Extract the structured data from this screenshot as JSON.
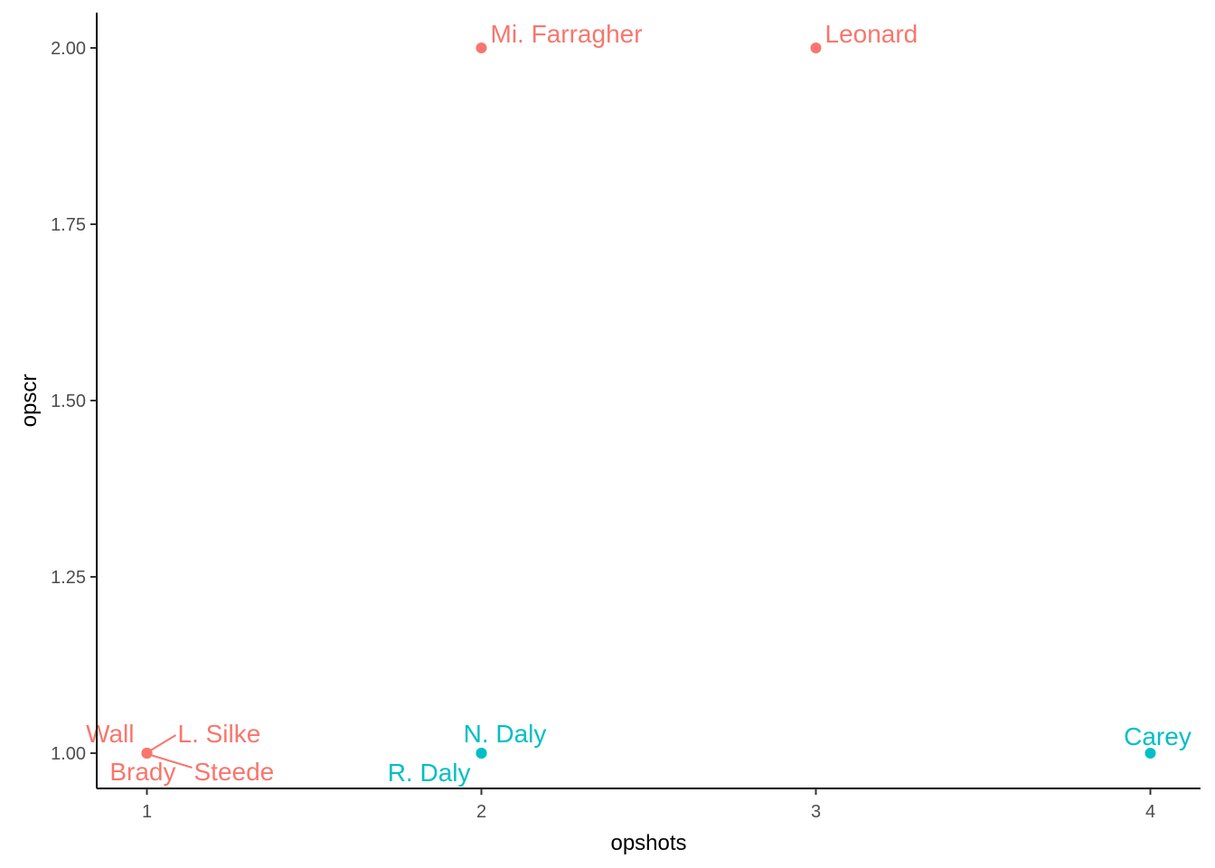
{
  "chart_data": {
    "type": "scatter",
    "xlabel": "opshots",
    "ylabel": "opscr",
    "xlim": [
      0.85,
      4.15
    ],
    "ylim": [
      0.95,
      2.05
    ],
    "x_ticks": [
      1,
      2,
      3,
      4
    ],
    "x_tick_labels": [
      "1",
      "2",
      "3",
      "4"
    ],
    "y_ticks": [
      1.0,
      1.25,
      1.5,
      1.75,
      2.0
    ],
    "y_tick_labels": [
      "1.00",
      "1.25",
      "1.50",
      "1.75",
      "2.00"
    ],
    "grid": false,
    "legend": "none",
    "colors": {
      "group_a": "#F8766D",
      "group_b": "#00BFC4"
    },
    "points": [
      {
        "label": "Mi. Farragher",
        "x": 2,
        "y": 2,
        "group": "group_a"
      },
      {
        "label": "Leonard",
        "x": 3,
        "y": 2,
        "group": "group_a"
      },
      {
        "label": "Wall",
        "x": 1,
        "y": 1,
        "group": "group_a"
      },
      {
        "label": "L. Silke",
        "x": 1,
        "y": 1,
        "group": "group_a"
      },
      {
        "label": "Brady",
        "x": 1,
        "y": 1,
        "group": "group_a"
      },
      {
        "label": "Steede",
        "x": 1,
        "y": 1,
        "group": "group_a"
      },
      {
        "label": "N. Daly",
        "x": 2,
        "y": 1,
        "group": "group_b"
      },
      {
        "label": "R. Daly",
        "x": 2,
        "y": 1,
        "group": "group_b"
      },
      {
        "label": "Carey",
        "x": 4,
        "y": 1,
        "group": "group_b"
      }
    ]
  }
}
